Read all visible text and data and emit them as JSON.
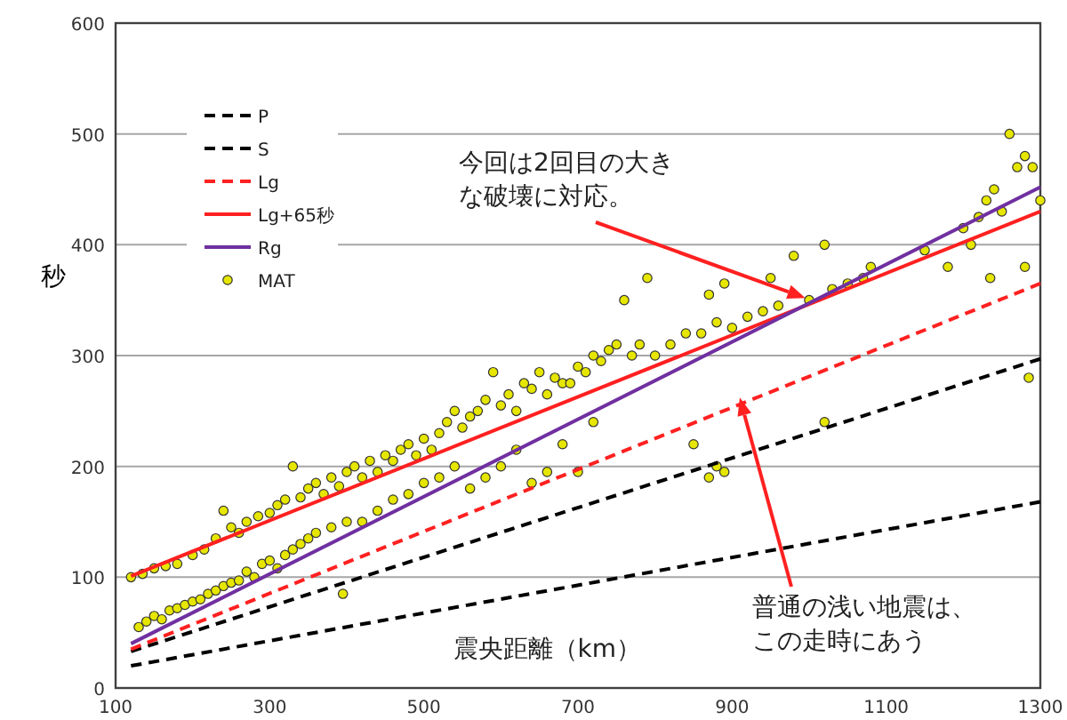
{
  "chart_data": {
    "type": "line",
    "ylabel": "秒",
    "xlabel": "震央距離（km）",
    "xlim": [
      100,
      1300
    ],
    "xticks": [
      100,
      300,
      500,
      700,
      900,
      1100,
      1300
    ],
    "ylim": [
      0,
      600
    ],
    "yticks": [
      0,
      100,
      200,
      300,
      400,
      500,
      600
    ],
    "grid": "y",
    "legend": "top left",
    "series": [
      {
        "name": "P",
        "color": "#000000",
        "line_style": "dashed",
        "x": [
          120,
          1300
        ],
        "values": [
          20,
          168
        ]
      },
      {
        "name": "S",
        "color": "#000000",
        "line_style": "dashed",
        "x": [
          120,
          1300
        ],
        "values": [
          33,
          297
        ]
      },
      {
        "name": "Lg",
        "color": "#ff2020",
        "line_style": "dashed",
        "x": [
          120,
          1300
        ],
        "values": [
          35,
          365
        ]
      },
      {
        "name": "Lg+65秒",
        "color": "#ff2020",
        "line_style": "solid",
        "x": [
          120,
          1300
        ],
        "values": [
          101,
          430
        ]
      },
      {
        "name": "Rg",
        "color": "#7030a0",
        "line_style": "solid",
        "x": [
          120,
          1300
        ],
        "values": [
          40,
          452
        ]
      },
      {
        "name": "MAT",
        "type": "scatter",
        "color": "#e6e600",
        "marker": "circle",
        "x": [
          120,
          135,
          150,
          165,
          180,
          200,
          215,
          230,
          240,
          250,
          260,
          270,
          285,
          300,
          310,
          320,
          330,
          340,
          350,
          360,
          370,
          380,
          390,
          400,
          410,
          420,
          430,
          440,
          450,
          460,
          470,
          480,
          490,
          500,
          510,
          520,
          530,
          540,
          550,
          560,
          570,
          580,
          590,
          600,
          610,
          620,
          630,
          640,
          650,
          660,
          670,
          680,
          690,
          700,
          710,
          720,
          730,
          740,
          750,
          760,
          770,
          780,
          790,
          800,
          820,
          840,
          860,
          870,
          880,
          890,
          900,
          920,
          940,
          950,
          960,
          980,
          1000,
          1020,
          1030,
          1050,
          1070,
          1080,
          1150,
          1180,
          1200,
          1210,
          1220,
          1230,
          1240,
          1250,
          1260,
          1270,
          1280,
          1290,
          1300,
          1280,
          1235,
          1285,
          130,
          140,
          150,
          160,
          170,
          180,
          190,
          200,
          210,
          220,
          230,
          240,
          250,
          260,
          270,
          280,
          290,
          300,
          310,
          320,
          330,
          340,
          350,
          360,
          380,
          395,
          400,
          420,
          440,
          460,
          480,
          500,
          520,
          540,
          560,
          580,
          600,
          620,
          640,
          660,
          680,
          700,
          720,
          850,
          870,
          880,
          890,
          1020
        ],
        "values": [
          100,
          103,
          108,
          110,
          112,
          120,
          125,
          135,
          160,
          145,
          140,
          150,
          155,
          158,
          165,
          170,
          200,
          172,
          180,
          185,
          175,
          190,
          182,
          195,
          200,
          190,
          205,
          195,
          210,
          205,
          215,
          220,
          210,
          225,
          215,
          230,
          240,
          250,
          235,
          245,
          250,
          260,
          285,
          255,
          265,
          250,
          275,
          270,
          285,
          265,
          280,
          275,
          275,
          290,
          285,
          300,
          295,
          305,
          310,
          350,
          300,
          310,
          370,
          300,
          310,
          320,
          320,
          355,
          330,
          365,
          325,
          335,
          340,
          370,
          345,
          390,
          350,
          400,
          360,
          365,
          370,
          380,
          395,
          380,
          415,
          400,
          425,
          440,
          450,
          430,
          500,
          470,
          480,
          470,
          440,
          380,
          370,
          280,
          55,
          60,
          65,
          62,
          70,
          72,
          75,
          78,
          80,
          85,
          88,
          92,
          95,
          97,
          105,
          100,
          112,
          115,
          108,
          120,
          125,
          130,
          135,
          140,
          145,
          85,
          150,
          150,
          160,
          170,
          175,
          185,
          190,
          200,
          180,
          190,
          200,
          215,
          185,
          195,
          220,
          195,
          240,
          220,
          190,
          200,
          195,
          240
        ]
      }
    ],
    "annotations": [
      "今回は2回目の大きな破壊に対応。",
      "普通の浅い地震は、この走時にあう"
    ]
  }
}
